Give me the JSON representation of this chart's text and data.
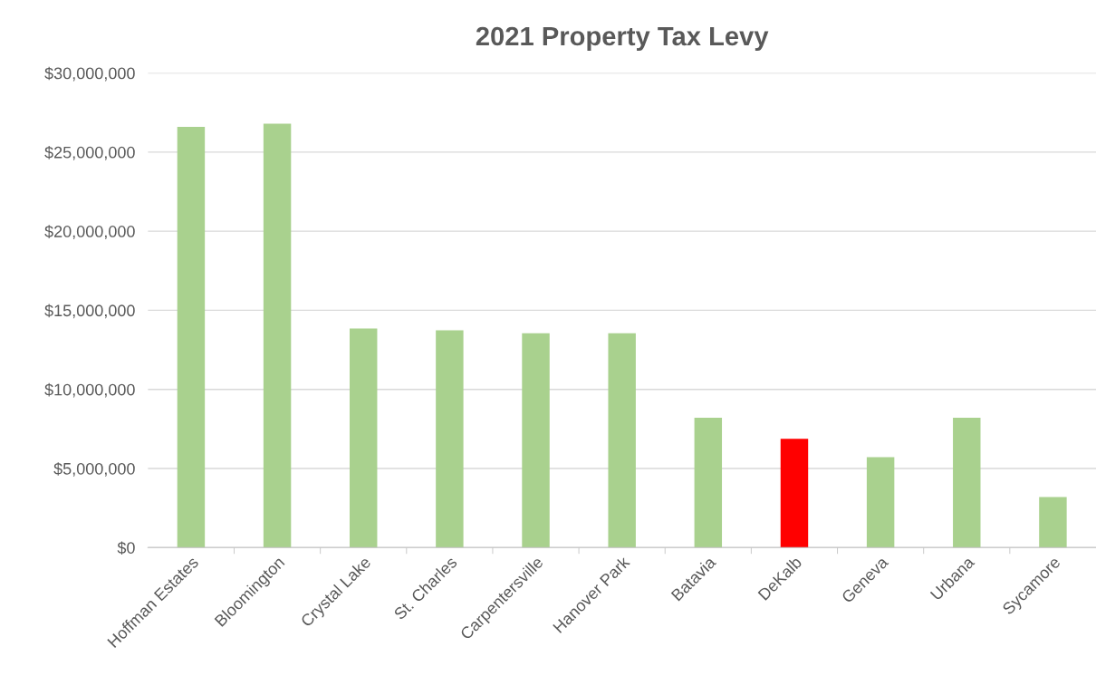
{
  "chart_data": {
    "type": "bar",
    "title": "2021 Property Tax Levy",
    "categories": [
      "Hoffman Estates",
      "Bloomington",
      "Crystal Lake",
      "St. Charles",
      "Carpentersville",
      "Hanover Park",
      "Batavia",
      "DeKalb",
      "Geneva",
      "Urbana",
      "Sycamore"
    ],
    "values": [
      26600000,
      26800000,
      13850000,
      13740000,
      13550000,
      13550000,
      8200000,
      6870000,
      5720000,
      8200000,
      3200000
    ],
    "colors": [
      "#a9d18e",
      "#a9d18e",
      "#a9d18e",
      "#a9d18e",
      "#a9d18e",
      "#a9d18e",
      "#a9d18e",
      "#ff0000",
      "#a9d18e",
      "#a9d18e",
      "#a9d18e"
    ],
    "ylim": [
      0,
      30000000
    ],
    "yticks": [
      {
        "value": 0,
        "label": "$0"
      },
      {
        "value": 5000000,
        "label": "$5,000,000"
      },
      {
        "value": 10000000,
        "label": "$10,000,000"
      },
      {
        "value": 15000000,
        "label": "$15,000,000"
      },
      {
        "value": 20000000,
        "label": "$20,000,000"
      },
      {
        "value": 25000000,
        "label": "$25,000,000"
      },
      {
        "value": 30000000,
        "label": "$30,000,000"
      }
    ],
    "grid": "y"
  }
}
